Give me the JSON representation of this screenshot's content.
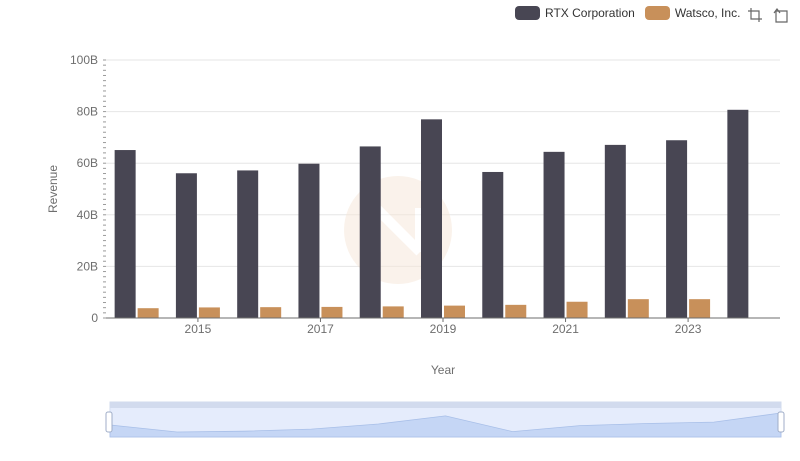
{
  "colors": {
    "rtx": "#484653",
    "watsco": "#c8905a",
    "grid": "#e6e6e6",
    "axis": "#6e6e6e",
    "slider": "#d2dbee"
  },
  "legend": [
    {
      "name": "RTX Corporation",
      "color": "#484653"
    },
    {
      "name": "Watsco, Inc.",
      "color": "#c8905a"
    }
  ],
  "toolbox": {
    "zoom_icon": "zoom-icon",
    "restore_icon": "restore-icon"
  },
  "chart_data": {
    "type": "bar",
    "xlabel": "Year",
    "ylabel": "Revenue",
    "ylim": [
      0,
      100000000000
    ],
    "yticks": [
      "0",
      "20B",
      "40B",
      "60B",
      "80B",
      "100B"
    ],
    "categories": [
      "2014",
      "2015",
      "2016",
      "2017",
      "2018",
      "2019",
      "2020",
      "2021",
      "2022",
      "2023",
      "2024"
    ],
    "xtick_labels": [
      "2015",
      "2017",
      "2019",
      "2021",
      "2023"
    ],
    "series": [
      {
        "name": "RTX Corporation",
        "values": [
          65100000000,
          56100000000,
          57200000000,
          59800000000,
          66500000000,
          77000000000,
          56600000000,
          64400000000,
          67100000000,
          68900000000,
          80700000000
        ]
      },
      {
        "name": "Watsco, Inc.",
        "values": [
          3800000000,
          4100000000,
          4200000000,
          4300000000,
          4500000000,
          4800000000,
          5100000000,
          6300000000,
          7300000000,
          7300000000,
          0
        ]
      }
    ],
    "grid": true,
    "legend_position": "top-right"
  }
}
